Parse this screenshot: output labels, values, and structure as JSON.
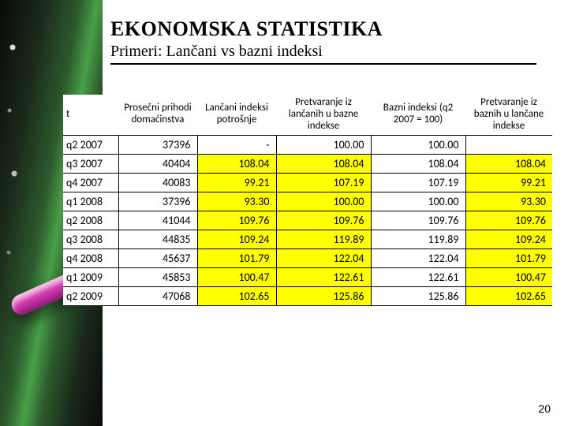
{
  "title": "EKONOMSKA STATISTIKA",
  "subtitle": "Primeri: Lančani vs bazni indeksi",
  "pagenum": "20",
  "table": {
    "columns": [
      "t",
      "Prosečni prihodi domaćinstva",
      "Lančani indeksi potrošnje",
      "Pretvaranje iz lančanih u bazne indekse",
      "Bazni indeksi (q2 2007 = 100)",
      "Pretvaranje iz baznih u lančane indekse"
    ],
    "col_widths": [
      "70px",
      "100px",
      "100px",
      "120px",
      "120px",
      "110px"
    ],
    "highlight_cols": [
      2,
      3,
      5
    ],
    "rows": [
      {
        "period": "q2 2007",
        "c1": "37396",
        "c2": "-",
        "c3": "100.00",
        "c4": "100.00",
        "c5": ""
      },
      {
        "period": "q3 2007",
        "c1": "40404",
        "c2": "108.04",
        "c3": "108.04",
        "c4": "108.04",
        "c5": "108.04"
      },
      {
        "period": "q4 2007",
        "c1": "40083",
        "c2": "99.21",
        "c3": "107.19",
        "c4": "107.19",
        "c5": "99.21"
      },
      {
        "period": "q1 2008",
        "c1": "37396",
        "c2": "93.30",
        "c3": "100.00",
        "c4": "100.00",
        "c5": "93.30"
      },
      {
        "period": "q2 2008",
        "c1": "41044",
        "c2": "109.76",
        "c3": "109.76",
        "c4": "109.76",
        "c5": "109.76"
      },
      {
        "period": "q3 2008",
        "c1": "44835",
        "c2": "109.24",
        "c3": "119.89",
        "c4": "119.89",
        "c5": "109.24"
      },
      {
        "period": "q4 2008",
        "c1": "45637",
        "c2": "101.79",
        "c3": "122.04",
        "c4": "122.04",
        "c5": "101.79"
      },
      {
        "period": "q1 2009",
        "c1": "45853",
        "c2": "100.47",
        "c3": "122.61",
        "c4": "122.61",
        "c5": "100.47"
      },
      {
        "period": "q2 2009",
        "c1": "47068",
        "c2": "102.65",
        "c3": "125.86",
        "c4": "125.86",
        "c5": "102.65"
      }
    ]
  },
  "colors": {
    "highlight": "#ffff00",
    "text": "#000000",
    "bg": "#ffffff"
  }
}
